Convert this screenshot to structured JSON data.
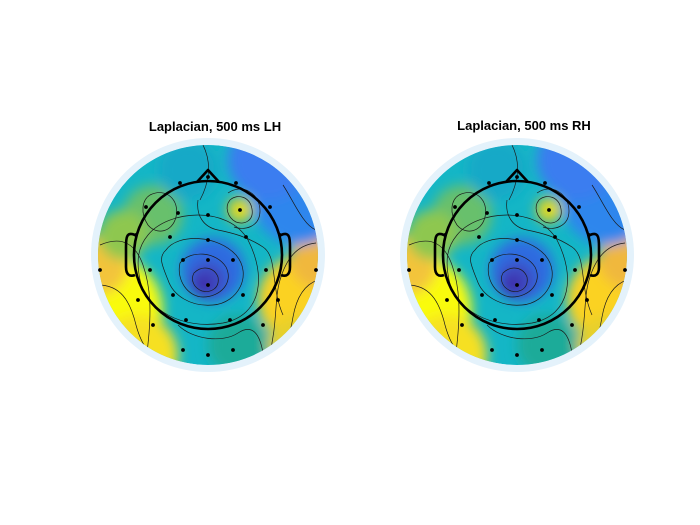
{
  "chart_data": [
    {
      "type": "heatmap",
      "title": "Laplacian, 500 ms LH",
      "colormap": "parula",
      "grid": false,
      "electrodes": 32,
      "extremes": [
        {
          "kind": "minimum",
          "where": "center, slightly left of vertex"
        },
        {
          "kind": "local maximum",
          "where": "right frontal"
        },
        {
          "kind": "maximum",
          "where": "left and right temporal-occipital edges"
        }
      ]
    },
    {
      "type": "heatmap",
      "title": "Laplacian, 500 ms RH",
      "colormap": "parula",
      "grid": false,
      "electrodes": 32,
      "extremes": [
        {
          "kind": "minimum",
          "where": "center, slightly left of vertex"
        },
        {
          "kind": "local maximum",
          "where": "right frontal"
        },
        {
          "kind": "maximum",
          "where": "left and right temporal-occipital edges"
        }
      ]
    }
  ],
  "colors": {
    "ring": "#e4f2fb",
    "head_outline": "#000000",
    "contour_line": "#1a1a1a",
    "colormap_low": "#3e26a8",
    "colormap_mid": "#14b6c6",
    "colormap_high": "#f9fb0e"
  }
}
